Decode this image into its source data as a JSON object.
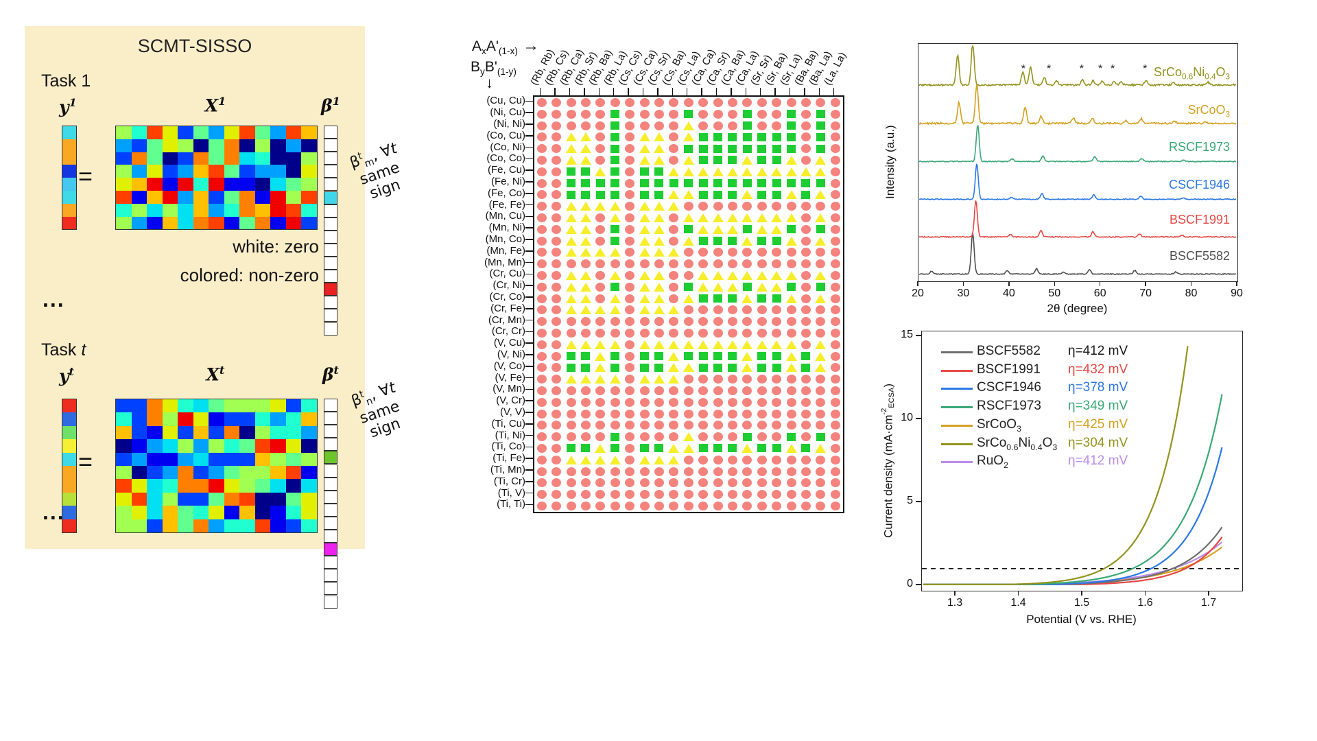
{
  "left_panel": {
    "bg": "#faeec9",
    "title": "SCMT-SISSO",
    "task1_label": "Task 1",
    "taskt_label": "Task *t*",
    "y1": "y^1^",
    "X1": "X^1^",
    "b1": "β^1^",
    "yt": "y^t^",
    "Xt": "X^t^",
    "bt": "β^t^",
    "equals": "=",
    "white_zero": "white: zero",
    "colored_nonzero": "colored: non-zero",
    "ellipsis": "...",
    "note_m": [
      "β^t^~m~, ∀*t*",
      "same",
      "sign"
    ],
    "note_n": [
      "β^t^~n~, ∀*t*",
      "same",
      "sign"
    ],
    "y1_cells": [
      "#3fd9e8",
      "#f9a825",
      "#f9a825",
      "#1535e0",
      "#46c7f0",
      "#3fd9e8",
      "#f9a825",
      "#ee2c20"
    ],
    "yt_cells": [
      "#ee2c20",
      "#2f6be0",
      "#6fe06a",
      "#f5ef35",
      "#3fd9e8",
      "#f9a825",
      "#f9a825",
      "#b8e03a",
      "#2f6be0",
      "#ee2c20"
    ],
    "b1_cells": {
      "count": 16,
      "filled": {
        "5": "#41d7e8",
        "12": "#e82121"
      }
    },
    "bt_cells": {
      "count": 16,
      "filled": {
        "4": "#6cc52c",
        "11": "#ee22ee"
      }
    },
    "x1_dims": [
      8,
      13
    ],
    "xt_dims": [
      10,
      13
    ],
    "jet_palette": [
      "#00008b",
      "#0000f0",
      "#0040ff",
      "#00a0ff",
      "#00e0f0",
      "#20ffd0",
      "#60ff90",
      "#a0ff50",
      "#e0f000",
      "#ffc000",
      "#ff8000",
      "#ff4000",
      "#f00000"
    ]
  },
  "matrix_panel": {
    "header_top": "A~x~A'~(1-x)~",
    "header_bottom": "B~y~B'~(1-y)~",
    "arrow_right": "→",
    "arrow_down": "↓",
    "col_labels": [
      "(Rb, Rb)",
      "(Rb, Cs)",
      "(Rb, Ca)",
      "(Rb, Sr)",
      "(Rb, Ba)",
      "(Rb, La)",
      "(Cs, Cs)",
      "(Cs, Ca)",
      "(Cs, Sr)",
      "(Cs, Ba)",
      "(Cs, La)",
      "(Ca, Ca)",
      "(Ca, Sr)",
      "(Ca, Ba)",
      "(Ca, La)",
      "(Sr, Sr)",
      "(Sr, Ba)",
      "(Sr, La)",
      "(Ba, Ba)",
      "(Ba, La)",
      "(La, La)"
    ],
    "row_labels": [
      "(Cu, Cu)",
      "(Ni, Cu)",
      "(Ni, Ni)",
      "(Co, Cu)",
      "(Co, Ni)",
      "(Co, Co)",
      "(Fe, Cu)",
      "(Fe, Ni)",
      "(Fe, Co)",
      "(Fe, Fe)",
      "(Mn, Cu)",
      "(Mn, Ni)",
      "(Mn, Co)",
      "(Mn, Fe)",
      "(Mn, Mn)",
      "(Cr, Cu)",
      "(Cr, Ni)",
      "(Cr, Co)",
      "(Cr, Fe)",
      "(Cr, Mn)",
      "(Cr, Cr)",
      "(V, Cu)",
      "(V, Ni)",
      "(V, Co)",
      "(V, Fe)",
      "(V, Mn)",
      "(V, Cr)",
      "(V, V)",
      "(Ti, Cu)",
      "(Ti, Ni)",
      "(Ti, Co)",
      "(Ti, Fe)",
      "(Ti, Mn)",
      "(Ti, Cr)",
      "(Ti, V)",
      "(Ti, Ti)"
    ],
    "pattern": [
      "rrrrrrrrrrrrrrrrrrrrr",
      "rrrrrsrrrrsrrrsrrsrsr",
      "rrrrrsrrrrtrrrsrrsrsr",
      "rrttrsrttrtsssssssrsr",
      "rrttrsrttrssssssssrsr",
      "rrttrsrttrtssstsstrtr",
      "rrsstsrsstttttttttttr",
      "rrssssrsssssssssssssr",
      "rrssssrssttssstsststr",
      "rrttttrtttrrrrrrrrrrr",
      "rrttrtrttrttttttttrtr",
      "rrttrsrttrstttsttsrsr",
      "rrttrsrttrtssstsstrtr",
      "rrttttrtttrrrrrrrrrrr",
      "rrrrrrrrrrrrrrrrrrrrr",
      "rrttrtrttrrtttttttrtr",
      "rrttrsrttrstttsttsrsr",
      "rrttrtrttrtssstsstrtr",
      "rrttttrtttrrrrrrrrrrr",
      "rrrrrrrrrrrrrrrrrrrrr",
      "rrrrrrrrrrrrrrrrrrrrr",
      "rrttttrtttttttttttrtr",
      "rrsstsrsstsssstsststr",
      "rrsstsrssttssstsststr",
      "rrttttrtttrrrrrrrrrrr",
      "rrrrrrrrrrrrrrrrrrrrr",
      "rrrrrrrrrrrrrrrrrrrrr",
      "rrrrrrrrrrrrrrrrrrrrr",
      "rrrrrrrrrrrrrrrrrrrrr",
      "rrrrrsrrrrtrrrsrrsrsr",
      "rrsstsrssttssstsststr",
      "rrttttrtttrrrrrrrrrrr",
      "rrrrrrrrrrrrrrrrrrrrr",
      "rrrrrrrrrrrrrrrrrrrrr",
      "rrrrrrrrrrrrrrrrrrrrr",
      "rrrrrrrrrrrrrrrrrrrrr"
    ],
    "symbols": {
      "r": {
        "meaning": "red-circle",
        "color": "#f4837d"
      },
      "s": {
        "meaning": "green-square",
        "color": "#1dcd32"
      },
      "t": {
        "meaning": "yellow-triangle",
        "color": "#f6ee2b"
      }
    }
  },
  "chart_data": [
    {
      "id": "xrd",
      "type": "line",
      "xlabel": "2θ (degree)",
      "ylabel": "Intensity (a.u.)",
      "xlim": [
        20,
        90
      ],
      "x_ticks": [
        20,
        30,
        40,
        50,
        60,
        70,
        80,
        90
      ],
      "grid": false,
      "legend_position": "right-of-each-trace",
      "series": [
        {
          "name": "BSCF5582",
          "color": "#4f4f4f",
          "peaks": [
            [
              22.9,
              0.07
            ],
            [
              31.9,
              1.0
            ],
            [
              39.5,
              0.08
            ],
            [
              45.9,
              0.13
            ],
            [
              51.8,
              0.05
            ],
            [
              57.5,
              0.11
            ],
            [
              67.5,
              0.09
            ],
            [
              76.5,
              0.05
            ]
          ]
        },
        {
          "name": "BSCF1991",
          "color": "#e84743",
          "peaks": [
            [
              32.6,
              1.0
            ],
            [
              40.2,
              0.07
            ],
            [
              46.9,
              0.17
            ],
            [
              58.3,
              0.14
            ],
            [
              68.5,
              0.08
            ],
            [
              77.8,
              0.05
            ]
          ]
        },
        {
          "name": "CSCF1946",
          "color": "#2b78e4",
          "peaks": [
            [
              32.8,
              1.0
            ],
            [
              40.4,
              0.06
            ],
            [
              47.1,
              0.16
            ],
            [
              58.5,
              0.13
            ],
            [
              68.8,
              0.08
            ],
            [
              78.0,
              0.04
            ]
          ]
        },
        {
          "name": "RSCF1973",
          "color": "#3aa876",
          "peaks": [
            [
              33.0,
              1.0
            ],
            [
              40.6,
              0.07
            ],
            [
              47.3,
              0.15
            ],
            [
              58.7,
              0.13
            ],
            [
              69.0,
              0.08
            ],
            [
              78.2,
              0.04
            ]
          ]
        },
        {
          "name": "SrCoO~3~",
          "color": "#d4a020",
          "peaks": [
            [
              28.9,
              0.55
            ],
            [
              32.8,
              1.0
            ],
            [
              43.4,
              0.42
            ],
            [
              46.9,
              0.18
            ],
            [
              54.0,
              0.14
            ],
            [
              58.2,
              0.12
            ],
            [
              65.5,
              0.07
            ],
            [
              68.9,
              0.12
            ],
            [
              76.2,
              0.06
            ],
            [
              83.0,
              0.05
            ]
          ]
        },
        {
          "name": "SrCo~0.6~Ni~0.4~O~3~",
          "color": "#93931f",
          "peaks": [
            [
              28.6,
              0.7
            ],
            [
              31.9,
              1.0
            ],
            [
              42.9,
              0.3
            ],
            [
              44.6,
              0.42
            ],
            [
              47.6,
              0.18
            ],
            [
              50.3,
              0.1
            ],
            [
              56.0,
              0.12
            ],
            [
              58.3,
              0.1
            ],
            [
              60.3,
              0.09
            ],
            [
              62.9,
              0.08
            ],
            [
              64.5,
              0.07
            ],
            [
              69.9,
              0.1
            ],
            [
              76.0,
              0.05
            ],
            [
              83.5,
              0.06
            ]
          ]
        }
      ],
      "annotations": {
        "marker": "*",
        "asterisk_2theta": [
          43.3,
          48.9,
          56.1,
          60.2,
          62.9,
          70.0
        ],
        "applies_to": "SrCo~0.6~Ni~0.4~O~3~"
      }
    },
    {
      "id": "oer",
      "type": "line",
      "xlabel": "Potential (V vs. RHE)",
      "ylabel": "Current density (mA·cm^-2^~ECSA~)",
      "xlim": [
        1.25,
        1.75
      ],
      "ylim": [
        0,
        15
      ],
      "x_ticks": [
        1.3,
        1.4,
        1.5,
        1.6,
        1.7
      ],
      "y_ticks": [
        0,
        5,
        10,
        15
      ],
      "dashed_line_y": 1,
      "grid": false,
      "legend_position": "upper-left-inside",
      "series": [
        {
          "name": "BSCF5582",
          "color": "#6e6e6e",
          "eta_label": "η=412 mV",
          "eta_color": "#1a1a1a",
          "eta_mV": 412,
          "V_at_1mA": 1.642,
          "j_end": 3.5,
          "V_end": 1.72
        },
        {
          "name": "BSCF1991",
          "color": "#e84743",
          "eta_label": "η=432 mV",
          "eta_color": "#e84743",
          "eta_mV": 432,
          "V_at_1mA": 1.662,
          "j_end": 2.9,
          "V_end": 1.72
        },
        {
          "name": "CSCF1946",
          "color": "#2b78e4",
          "eta_label": "η=378 mV",
          "eta_color": "#2b78e4",
          "eta_mV": 378,
          "V_at_1mA": 1.608,
          "j_end": 8.3,
          "V_end": 1.72
        },
        {
          "name": "RSCF1973",
          "color": "#3aa876",
          "eta_label": "η=349 mV",
          "eta_color": "#3aa876",
          "eta_mV": 349,
          "V_at_1mA": 1.579,
          "j_end": 11.5,
          "V_end": 1.72
        },
        {
          "name": "SrCoO~3~",
          "color": "#d4a020",
          "eta_label": "η=425 mV",
          "eta_color": "#d4a020",
          "eta_mV": 425,
          "V_at_1mA": 1.655,
          "j_end": 2.3,
          "V_end": 1.72
        },
        {
          "name": "SrCo~0.6~Ni~0.4~O~3~",
          "color": "#93931f",
          "eta_label": "η=304 mV",
          "eta_color": "#93931f",
          "eta_mV": 304,
          "V_at_1mA": 1.534,
          "j_end": 15,
          "V_end": 1.668
        },
        {
          "name": "RuO~2~",
          "color": "#bb8ce8",
          "eta_label": "η=412 mV",
          "eta_color": "#bb8ce8",
          "eta_mV": 412,
          "V_at_1mA": 1.642,
          "j_end": 2.6,
          "V_end": 1.72
        }
      ]
    }
  ]
}
